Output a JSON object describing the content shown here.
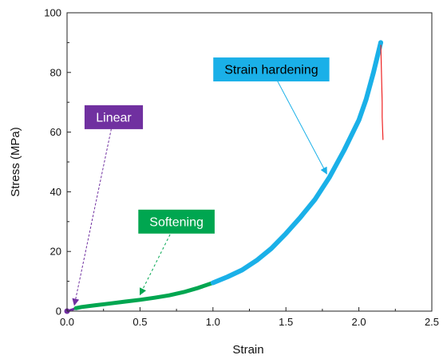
{
  "chart_data": {
    "type": "line",
    "title": "",
    "xlabel": "Strain",
    "ylabel": "Stress (MPa)",
    "xlim": [
      0,
      2.5
    ],
    "ylim": [
      0,
      100
    ],
    "grid": false,
    "x_ticks": [
      0.0,
      0.5,
      1.0,
      1.5,
      2.0,
      2.5
    ],
    "x_tick_labels": [
      "0.0",
      "0.5",
      "1.0",
      "1.5",
      "2.0",
      "2.5"
    ],
    "y_ticks": [
      0,
      20,
      40,
      60,
      80,
      100
    ],
    "y_tick_labels": [
      "0",
      "20",
      "40",
      "60",
      "80",
      "100"
    ],
    "series": [
      {
        "color": "#7030a0",
        "points": [
          [
            0.0,
            0.0
          ],
          [
            0.02,
            0.3
          ],
          [
            0.04,
            0.6
          ],
          [
            0.06,
            1.0
          ]
        ]
      },
      {
        "color": "#00a650",
        "points": [
          [
            0.06,
            1.0
          ],
          [
            0.1,
            1.4
          ],
          [
            0.2,
            2.0
          ],
          [
            0.3,
            2.6
          ],
          [
            0.4,
            3.2
          ],
          [
            0.5,
            3.8
          ],
          [
            0.6,
            4.5
          ],
          [
            0.7,
            5.3
          ],
          [
            0.8,
            6.4
          ],
          [
            0.9,
            7.8
          ],
          [
            1.0,
            9.5
          ]
        ]
      },
      {
        "color": "#1ab0e8",
        "points": [
          [
            1.0,
            9.5
          ],
          [
            1.1,
            11.5
          ],
          [
            1.2,
            13.8
          ],
          [
            1.3,
            17.0
          ],
          [
            1.4,
            21.0
          ],
          [
            1.5,
            26.0
          ],
          [
            1.6,
            31.5
          ],
          [
            1.7,
            37.5
          ],
          [
            1.8,
            45.0
          ],
          [
            1.9,
            54.0
          ],
          [
            2.0,
            64.0
          ],
          [
            2.05,
            71.0
          ],
          [
            2.1,
            80.0
          ],
          [
            2.15,
            90.0
          ]
        ]
      },
      {
        "color": "#ee2222",
        "points": [
          [
            2.15,
            90.0
          ],
          [
            2.155,
            80.0
          ],
          [
            2.16,
            70.0
          ],
          [
            2.16,
            65.0
          ],
          [
            2.165,
            57.5
          ]
        ]
      }
    ],
    "annotations": [
      {
        "text": "Linear",
        "box_color": "#7030a0",
        "text_color": "#ffffff",
        "arrow_color": "#7030a0",
        "anchor": [
          0.32,
          65.0
        ],
        "target": [
          0.05,
          2.0
        ]
      },
      {
        "text": "Softening",
        "box_color": "#00a650",
        "text_color": "#ffffff",
        "arrow_color": "#00a650",
        "anchor": [
          0.75,
          30.0
        ],
        "target": [
          0.5,
          5.5
        ]
      },
      {
        "text": "Strain hardening",
        "box_color": "#1ab0e8",
        "text_color": "#000000",
        "arrow_color": "#1ab0e8",
        "anchor": [
          1.4,
          81.0
        ],
        "target": [
          1.78,
          46.0
        ]
      }
    ]
  }
}
